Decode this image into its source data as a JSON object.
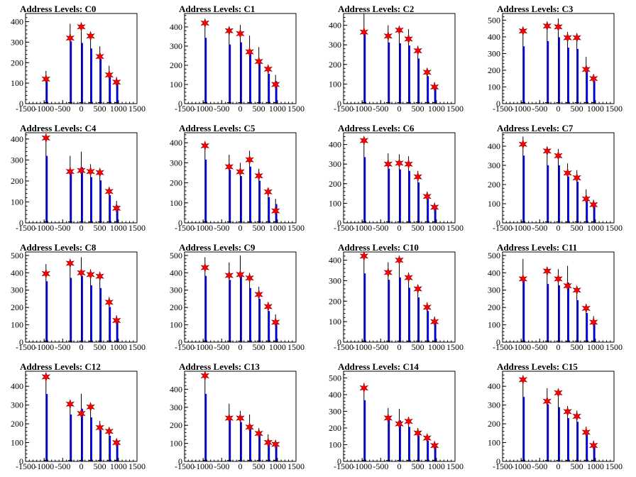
{
  "chart_data": [
    {
      "type": "bar",
      "title": "Address Levels: C0",
      "xlim": [
        -1500,
        1500
      ],
      "ylim": [
        0,
        440
      ],
      "yticks": [
        0,
        100,
        200,
        300,
        400
      ],
      "xticks": [
        -1500,
        -1000,
        -500,
        0,
        500,
        1000,
        1500
      ],
      "peaks_x": [
        -950,
        -300,
        0,
        250,
        500,
        750,
        950
      ],
      "peaks_y": [
        160,
        390,
        380,
        345,
        280,
        185,
        130
      ],
      "markers_y": [
        120,
        320,
        375,
        330,
        230,
        140,
        105
      ]
    },
    {
      "type": "bar",
      "title": "Address Levels: C1",
      "xlim": [
        -1500,
        1500
      ],
      "ylim": [
        0,
        470
      ],
      "yticks": [
        0,
        100,
        200,
        300,
        400
      ],
      "xticks": [
        -1500,
        -1000,
        -500,
        0,
        500,
        1000,
        1500
      ],
      "peaks_x": [
        -950,
        -300,
        0,
        250,
        500,
        750,
        950
      ],
      "peaks_y": [
        440,
        395,
        410,
        355,
        295,
        200,
        150
      ],
      "markers_y": [
        420,
        380,
        365,
        270,
        220,
        180,
        100
      ]
    },
    {
      "type": "bar",
      "title": "Address Levels: C2",
      "xlim": [
        -1500,
        1500
      ],
      "ylim": [
        0,
        460
      ],
      "yticks": [
        0,
        100,
        200,
        300,
        400
      ],
      "xticks": [
        -1500,
        -1000,
        -500,
        0,
        500,
        1000,
        1500
      ],
      "peaks_x": [
        -950,
        -300,
        0,
        250,
        500,
        750,
        950
      ],
      "peaks_y": [
        460,
        400,
        395,
        380,
        295,
        180,
        110
      ],
      "markers_y": [
        365,
        345,
        375,
        330,
        270,
        160,
        85
      ]
    },
    {
      "type": "bar",
      "title": "Address Levels: C3",
      "xlim": [
        -1500,
        1500
      ],
      "ylim": [
        0,
        540
      ],
      "yticks": [
        0,
        100,
        200,
        300,
        400,
        500
      ],
      "xticks": [
        -1500,
        -1000,
        -500,
        0,
        500,
        1000,
        1500
      ],
      "peaks_x": [
        -950,
        -300,
        0,
        250,
        500,
        750,
        950
      ],
      "peaks_y": [
        440,
        480,
        510,
        430,
        420,
        280,
        175
      ],
      "markers_y": [
        435,
        465,
        460,
        395,
        395,
        205,
        150
      ]
    },
    {
      "type": "bar",
      "title": "Address Levels: C4",
      "xlim": [
        -1500,
        1500
      ],
      "ylim": [
        0,
        430
      ],
      "yticks": [
        0,
        100,
        200,
        300,
        400
      ],
      "xticks": [
        -1500,
        -1000,
        -500,
        0,
        500,
        1000,
        1500
      ],
      "peaks_x": [
        -950,
        -300,
        0,
        250,
        500,
        750,
        950
      ],
      "peaks_y": [
        410,
        320,
        340,
        280,
        260,
        170,
        105
      ],
      "markers_y": [
        405,
        245,
        250,
        245,
        240,
        150,
        70
      ]
    },
    {
      "type": "bar",
      "title": "Address Levels: C5",
      "xlim": [
        -1500,
        1500
      ],
      "ylim": [
        0,
        450
      ],
      "yticks": [
        0,
        100,
        200,
        300,
        400
      ],
      "xticks": [
        -1500,
        -1000,
        -500,
        0,
        500,
        1000,
        1500
      ],
      "peaks_x": [
        -950,
        -300,
        0,
        250,
        500,
        750,
        950
      ],
      "peaks_y": [
        405,
        340,
        300,
        360,
        270,
        165,
        120
      ],
      "markers_y": [
        385,
        280,
        255,
        315,
        235,
        155,
        60
      ]
    },
    {
      "type": "bar",
      "title": "Address Levels: C6",
      "xlim": [
        -1500,
        1500
      ],
      "ylim": [
        0,
        460
      ],
      "yticks": [
        0,
        100,
        200,
        300,
        400
      ],
      "xticks": [
        -1500,
        -1000,
        -500,
        0,
        500,
        1000,
        1500
      ],
      "peaks_x": [
        -950,
        -300,
        0,
        250,
        500,
        750,
        950
      ],
      "peaks_y": [
        430,
        355,
        350,
        340,
        265,
        160,
        100
      ],
      "markers_y": [
        420,
        300,
        305,
        300,
        235,
        135,
        80
      ]
    },
    {
      "type": "bar",
      "title": "Address Levels: C7",
      "xlim": [
        -1500,
        1500
      ],
      "ylim": [
        0,
        470
      ],
      "yticks": [
        0,
        100,
        200,
        300,
        400
      ],
      "xticks": [
        -1500,
        -1000,
        -500,
        0,
        500,
        1000,
        1500
      ],
      "peaks_x": [
        -950,
        -300,
        0,
        250,
        500,
        750,
        950
      ],
      "peaks_y": [
        450,
        385,
        385,
        310,
        275,
        175,
        120
      ],
      "markers_y": [
        410,
        375,
        350,
        260,
        235,
        125,
        95
      ]
    },
    {
      "type": "bar",
      "title": "Address Levels: C8",
      "xlim": [
        -1500,
        1500
      ],
      "ylim": [
        0,
        520
      ],
      "yticks": [
        0,
        100,
        200,
        300,
        400,
        500
      ],
      "xticks": [
        -1500,
        -1000,
        -500,
        0,
        500,
        1000,
        1500
      ],
      "peaks_x": [
        -950,
        -300,
        0,
        250,
        500,
        750,
        950
      ],
      "peaks_y": [
        450,
        475,
        490,
        420,
        400,
        260,
        155
      ],
      "markers_y": [
        395,
        455,
        400,
        390,
        380,
        230,
        125
      ]
    },
    {
      "type": "bar",
      "title": "Address Levels: C9",
      "xlim": [
        -1500,
        1500
      ],
      "ylim": [
        0,
        520
      ],
      "yticks": [
        0,
        100,
        200,
        300,
        400,
        500
      ],
      "xticks": [
        -1500,
        -1000,
        -500,
        0,
        500,
        1000,
        1500
      ],
      "peaks_x": [
        -950,
        -300,
        0,
        250,
        500,
        750,
        950
      ],
      "peaks_y": [
        490,
        460,
        500,
        400,
        320,
        230,
        160
      ],
      "markers_y": [
        430,
        385,
        390,
        370,
        275,
        205,
        115
      ]
    },
    {
      "type": "bar",
      "title": "Address Levels: C10",
      "xlim": [
        -1500,
        1500
      ],
      "ylim": [
        0,
        440
      ],
      "yticks": [
        0,
        100,
        200,
        300,
        400
      ],
      "xticks": [
        -1500,
        -1000,
        -500,
        0,
        500,
        1000,
        1500
      ],
      "peaks_x": [
        -950,
        -300,
        0,
        250,
        500,
        750,
        950
      ],
      "peaks_y": [
        430,
        390,
        405,
        340,
        280,
        195,
        125
      ],
      "markers_y": [
        420,
        340,
        400,
        315,
        260,
        170,
        100
      ]
    },
    {
      "type": "bar",
      "title": "Address Levels: C11",
      "xlim": [
        -1500,
        1500
      ],
      "ylim": [
        0,
        520
      ],
      "yticks": [
        0,
        100,
        200,
        300,
        400,
        500
      ],
      "xticks": [
        -1500,
        -1000,
        -500,
        0,
        500,
        1000,
        1500
      ],
      "peaks_x": [
        -950,
        -300,
        0,
        250,
        500,
        750,
        950
      ],
      "peaks_y": [
        480,
        430,
        420,
        440,
        310,
        215,
        150
      ],
      "markers_y": [
        365,
        410,
        365,
        325,
        300,
        195,
        115
      ]
    },
    {
      "type": "bar",
      "title": "Address Levels: C12",
      "xlim": [
        -1500,
        1500
      ],
      "ylim": [
        0,
        480
      ],
      "yticks": [
        0,
        100,
        200,
        300,
        400
      ],
      "xticks": [
        -1500,
        -1000,
        -500,
        0,
        500,
        1000,
        1500
      ],
      "peaks_x": [
        -950,
        -300,
        0,
        250,
        500,
        750,
        950
      ],
      "peaks_y": [
        460,
        320,
        360,
        300,
        215,
        175,
        120
      ],
      "markers_y": [
        450,
        305,
        255,
        290,
        180,
        160,
        100
      ]
    },
    {
      "type": "bar",
      "title": "Address Levels: C13",
      "xlim": [
        -1500,
        1500
      ],
      "ylim": [
        0,
        500
      ],
      "yticks": [
        0,
        100,
        200,
        300,
        400
      ],
      "xticks": [
        -1500,
        -1000,
        -500,
        0,
        500,
        1000,
        1500
      ],
      "peaks_x": [
        -950,
        -300,
        0,
        250,
        500,
        750,
        950
      ],
      "peaks_y": [
        480,
        320,
        280,
        260,
        185,
        150,
        115
      ],
      "markers_y": [
        475,
        240,
        240,
        190,
        155,
        105,
        95
      ]
    },
    {
      "type": "bar",
      "title": "Address Levels: C14",
      "xlim": [
        -1500,
        1500
      ],
      "ylim": [
        0,
        540
      ],
      "yticks": [
        0,
        100,
        200,
        300,
        400,
        500
      ],
      "xticks": [
        -1500,
        -1000,
        -500,
        0,
        500,
        1000,
        1500
      ],
      "peaks_x": [
        -950,
        -300,
        0,
        250,
        500,
        750,
        950
      ],
      "peaks_y": [
        470,
        320,
        315,
        265,
        200,
        160,
        110
      ],
      "markers_y": [
        440,
        260,
        225,
        240,
        170,
        140,
        95
      ]
    },
    {
      "type": "bar",
      "title": "Address Levels: C15",
      "xlim": [
        -1500,
        1500
      ],
      "ylim": [
        0,
        480
      ],
      "yticks": [
        0,
        100,
        200,
        300,
        400
      ],
      "xticks": [
        -1500,
        -1000,
        -500,
        0,
        500,
        1000,
        1500
      ],
      "peaks_x": [
        -950,
        -300,
        0,
        250,
        500,
        750,
        950
      ],
      "peaks_y": [
        440,
        390,
        370,
        295,
        270,
        185,
        110
      ],
      "markers_y": [
        435,
        320,
        365,
        265,
        240,
        155,
        85
      ]
    }
  ],
  "colors": {
    "histogram_fill": "#0000ff",
    "histogram_line": "#000000",
    "marker": "#ff0000",
    "axis": "#000000"
  },
  "marker_shape": "star"
}
